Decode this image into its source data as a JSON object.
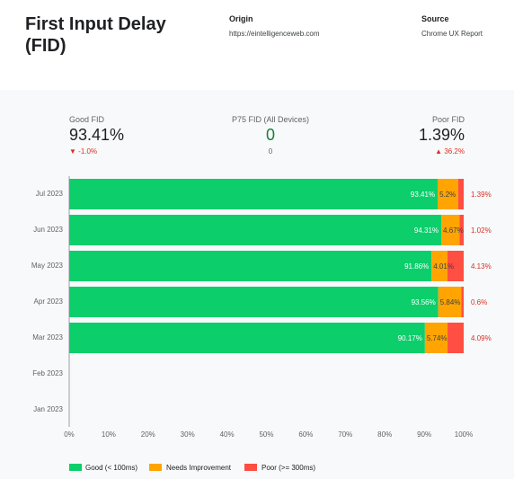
{
  "header": {
    "title": "First Input Delay (FID)",
    "origin_label": "Origin",
    "origin_value": "https://eintelligenceweb.com",
    "source_label": "Source",
    "source_value": "Chrome UX Report"
  },
  "scorecards": {
    "good": {
      "label": "Good FID",
      "value": "93.41%",
      "delta": "-1.0%"
    },
    "p75": {
      "label": "P75 FID (All Devices)",
      "value": "0",
      "sub": "0"
    },
    "poor": {
      "label": "Poor FID",
      "value": "1.39%",
      "delta": "36.2%"
    }
  },
  "colors": {
    "good": "#0cce6b",
    "needs": "#ffa400",
    "poor": "#ff4e42",
    "delta_red": "#d93025",
    "p75_green": "#188038"
  },
  "chart_data": {
    "type": "bar",
    "orientation": "horizontal",
    "stacked": true,
    "categories": [
      "Jul 2023",
      "Jun 2023",
      "May 2023",
      "Apr 2023",
      "Mar 2023",
      "Feb 2023",
      "Jan 2023"
    ],
    "series": [
      {
        "name": "Good (< 100ms)",
        "values": [
          93.41,
          94.31,
          91.86,
          93.56,
          90.17,
          null,
          null
        ]
      },
      {
        "name": "Needs Improvement",
        "values": [
          5.2,
          4.67,
          4.01,
          5.84,
          5.74,
          null,
          null
        ]
      },
      {
        "name": "Poor (>= 300ms)",
        "values": [
          1.39,
          1.02,
          4.13,
          0.6,
          4.09,
          null,
          null
        ]
      }
    ],
    "bar_labels": [
      [
        "93.41%",
        "5.2%",
        "1.39%"
      ],
      [
        "94.31%",
        "4.67%",
        "1.02%"
      ],
      [
        "91.86%",
        "4.01%",
        "4.13%"
      ],
      [
        "93.56%",
        "5.84%",
        "0.6%"
      ],
      [
        "90.17%",
        "5.74%",
        "4.09%"
      ],
      null,
      null
    ],
    "x_ticks": [
      "0%",
      "10%",
      "20%",
      "30%",
      "40%",
      "50%",
      "60%",
      "70%",
      "80%",
      "90%",
      "100%"
    ],
    "xlim": [
      0,
      100
    ],
    "legend_position": "bottom-left"
  }
}
